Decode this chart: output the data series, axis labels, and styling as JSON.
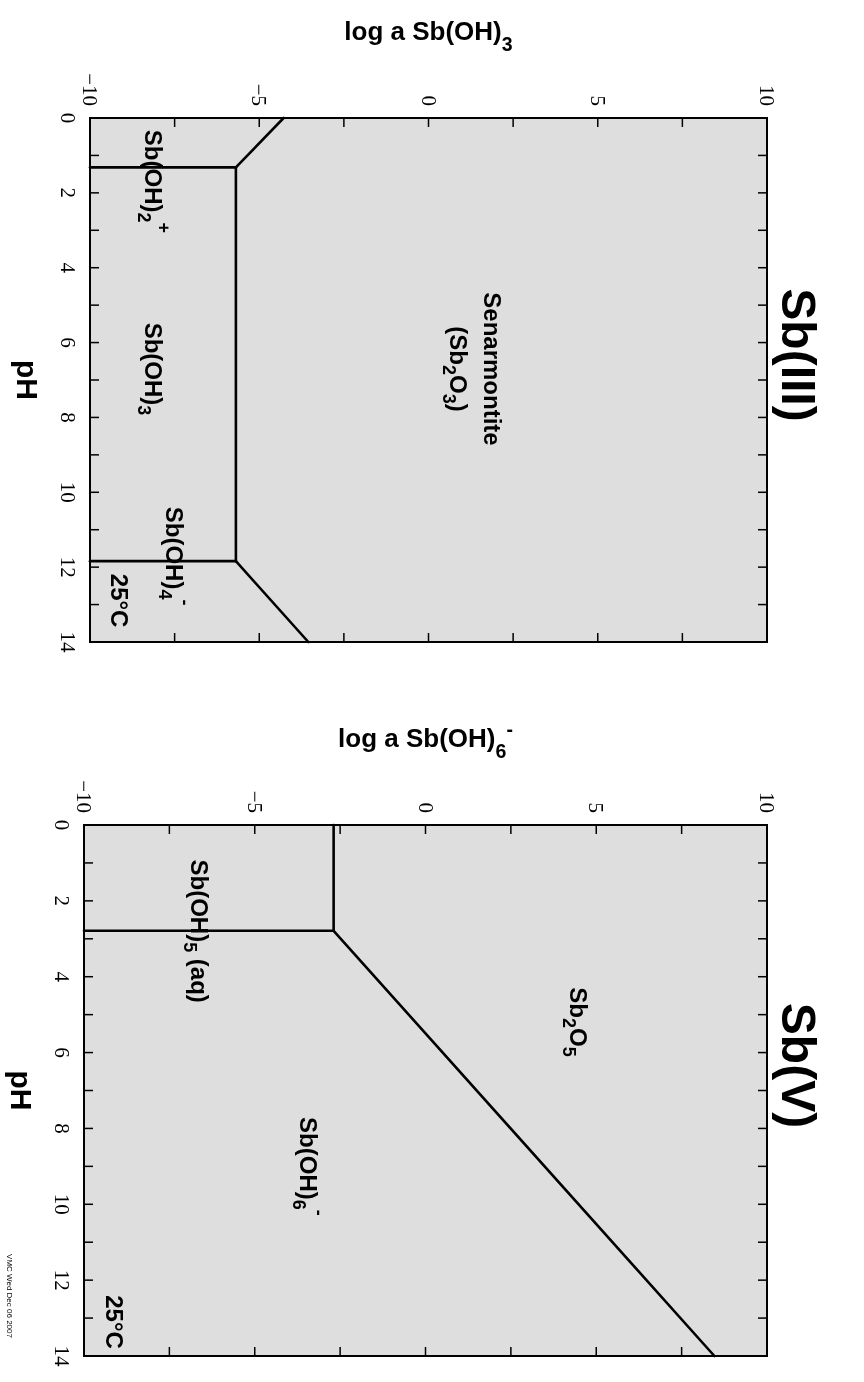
{
  "chart_data": [
    {
      "type": "line",
      "title": "Sb(III)",
      "xlabel": "log a Sb(OH)$_{3}$",
      "ylabel": "pH",
      "xlim": [
        -10,
        10
      ],
      "ylim": [
        14,
        0
      ],
      "xticks": [
        {
          "value": -10,
          "label": "−10"
        },
        {
          "value": -7.5,
          "label": null
        },
        {
          "value": -5,
          "label": "−5"
        },
        {
          "value": -2.5,
          "label": null
        },
        0,
        {
          "value": 2.5,
          "label": null
        },
        5,
        {
          "value": 7.5,
          "label": null
        },
        10
      ],
      "yticks": [
        0,
        {
          "value": 1,
          "label": null
        },
        2,
        {
          "value": 3,
          "label": null
        },
        4,
        {
          "value": 5,
          "label": null
        },
        6,
        {
          "value": 7,
          "label": null
        },
        8,
        {
          "value": 9,
          "label": null
        },
        10,
        {
          "value": 11,
          "label": null
        },
        12,
        {
          "value": 13,
          "label": null
        },
        14
      ],
      "series": [
        {
          "color": "#000000",
          "x": [
            -10,
            -5.69
          ],
          "values": [
            1.32,
            1.32
          ]
        },
        {
          "color": "#000000",
          "x": [
            -4.28,
            -5.69
          ],
          "values": [
            0,
            1.32
          ]
        },
        {
          "color": "#000000",
          "x": [
            -5.69,
            -5.69
          ],
          "values": [
            1.32,
            11.84
          ]
        },
        {
          "color": "#000000",
          "x": [
            -10,
            -5.69
          ],
          "values": [
            11.84,
            11.84
          ]
        },
        {
          "color": "#000000",
          "x": [
            -5.69,
            -3.55
          ],
          "values": [
            11.84,
            14
          ]
        }
      ],
      "annotations": [
        "Sb(OH)$_{2}$$^{+}$",
        "Sb(OH)$_{3}$",
        "Sb(OH)$_{4}$$^{-}$",
        "25°C",
        "Senarmontite",
        "(Sb$_{2}$O$_{3}$)"
      ]
    },
    {
      "type": "line",
      "title": "Sb(V)",
      "xlabel": "log a Sb(OH)$_{6}$$^{-}$",
      "ylabel": "pH",
      "xlim": [
        -10,
        10
      ],
      "ylim": [
        14,
        0
      ],
      "xticks": [
        {
          "value": -10,
          "label": "−10"
        },
        {
          "value": -7.5,
          "label": null
        },
        {
          "value": -5,
          "label": "−5"
        },
        {
          "value": -2.5,
          "label": null
        },
        0,
        {
          "value": 2.5,
          "label": null
        },
        5,
        {
          "value": 7.5,
          "label": null
        },
        10
      ],
      "yticks": [
        0,
        {
          "value": 1,
          "label": null
        },
        2,
        {
          "value": 3,
          "label": null
        },
        4,
        {
          "value": 5,
          "label": null
        },
        6,
        {
          "value": 7,
          "label": null
        },
        8,
        {
          "value": 9,
          "label": null
        },
        10,
        {
          "value": 11,
          "label": null
        },
        12,
        {
          "value": 13,
          "label": null
        },
        14
      ],
      "series": [
        {
          "color": "#000000",
          "x": [
            -2.69,
            -2.69
          ],
          "values": [
            0,
            2.79
          ]
        },
        {
          "color": "#000000",
          "x": [
            -10,
            -2.69
          ],
          "values": [
            2.79,
            2.79
          ]
        },
        {
          "color": "#000000",
          "x": [
            -2.69,
            8.46
          ],
          "values": [
            2.79,
            14
          ]
        }
      ],
      "annotations": [
        "Sb(OH)$_{5}$ (aq)",
        "Sb$_{2}$O$_{5}$",
        "Sb(OH)$_{6}$$^{-}$",
        "25°C",
        "VMC Wed Dec 06 2007"
      ]
    }
  ]
}
